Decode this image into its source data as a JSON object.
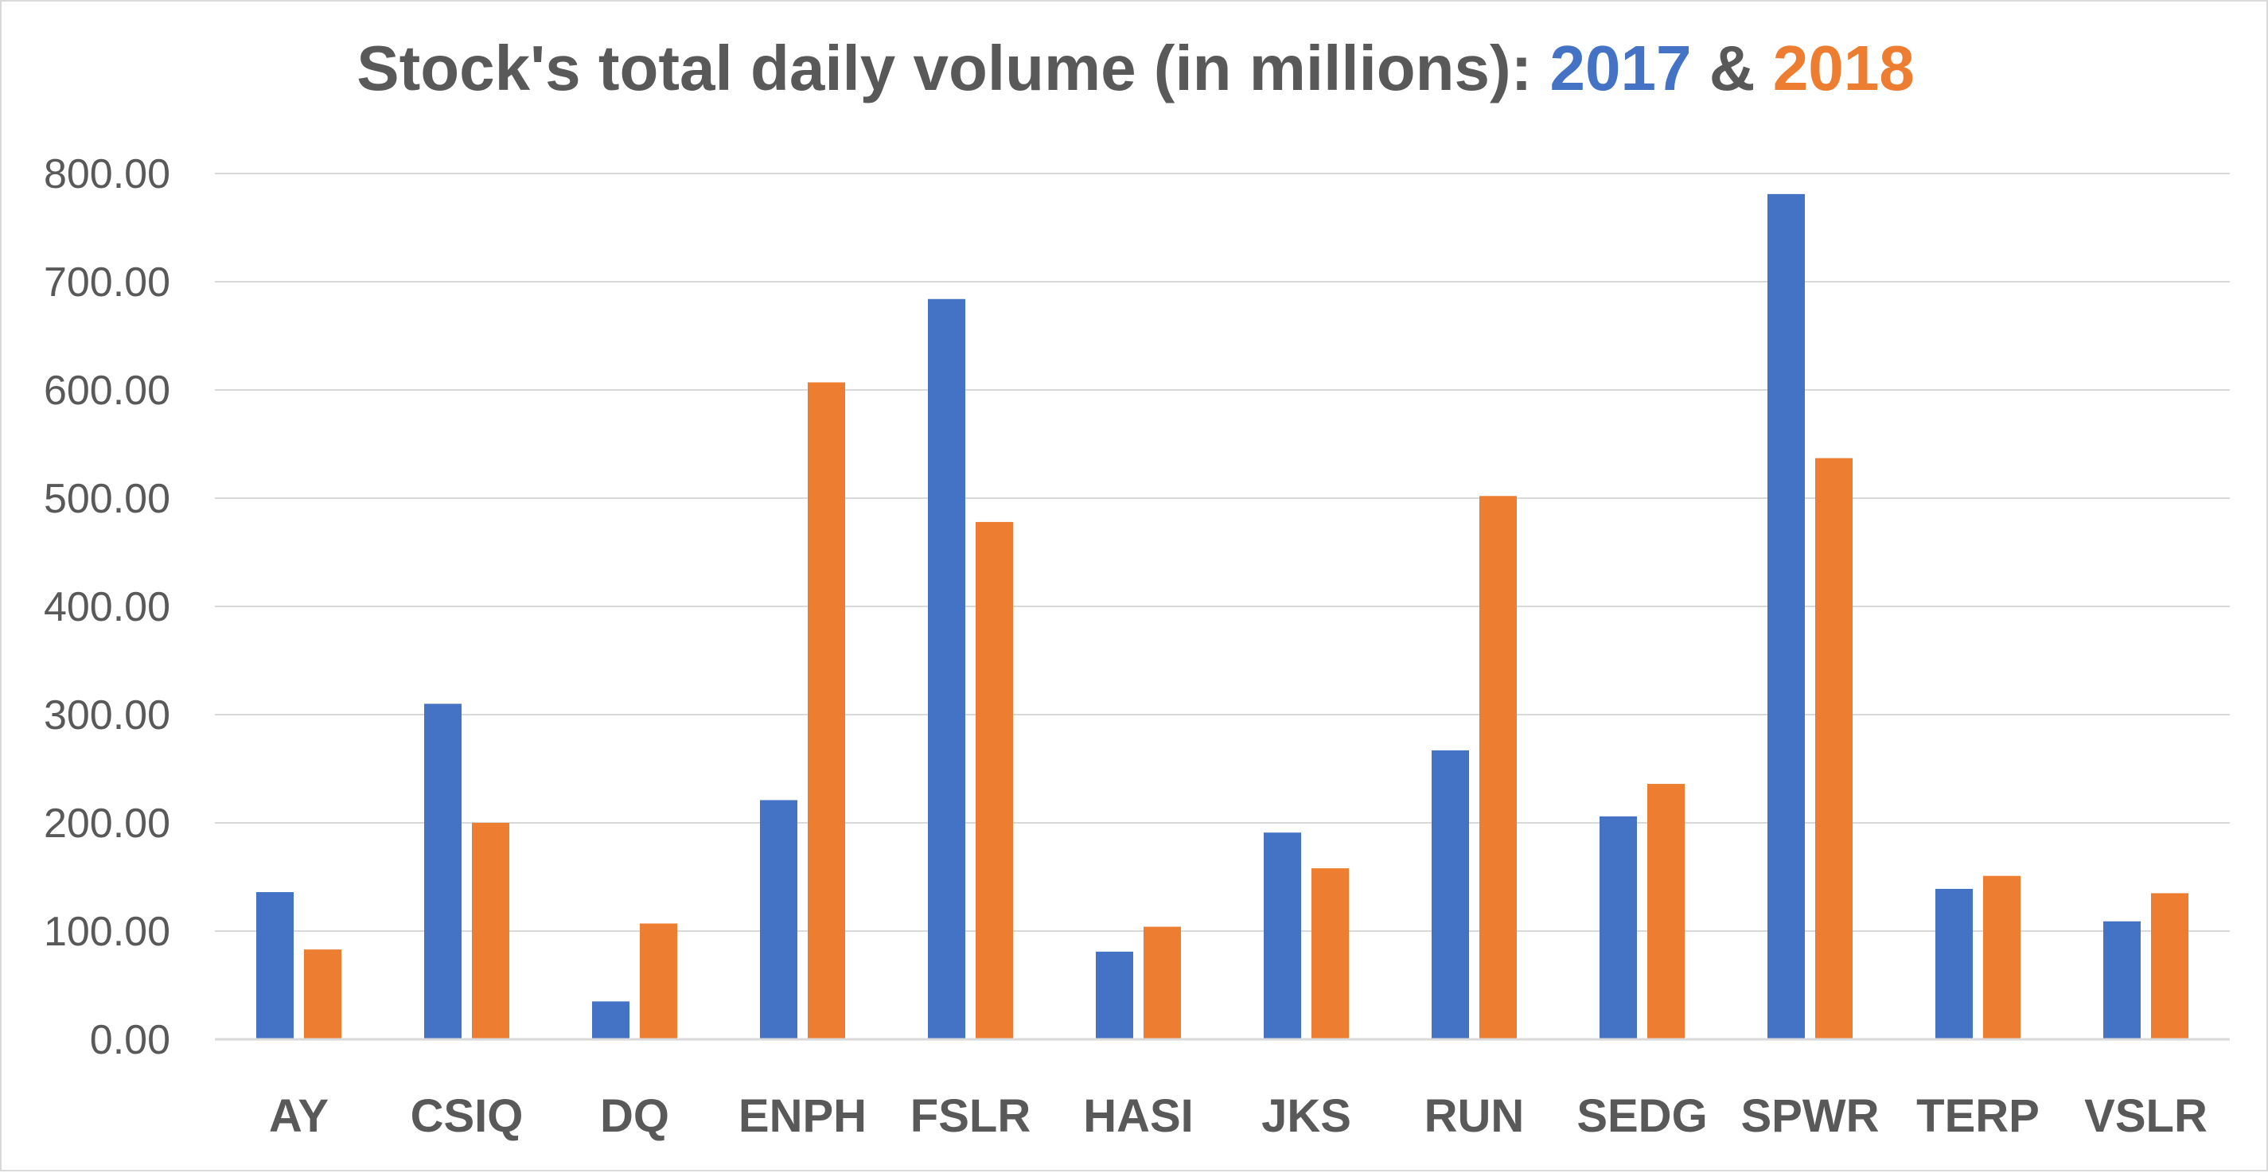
{
  "chart_data": {
    "type": "bar",
    "title": {
      "prefix": "Stock's total daily volume (in millions): ",
      "year_a": "2017",
      "joiner": " & ",
      "year_b": "2018"
    },
    "xlabel": "",
    "ylabel": "",
    "ylim": [
      0,
      800
    ],
    "yticks": [
      "0.00",
      "100.00",
      "200.00",
      "300.00",
      "400.00",
      "500.00",
      "600.00",
      "700.00",
      "800.00"
    ],
    "grid": true,
    "legend": "none",
    "categories": [
      "AY",
      "CSIQ",
      "DQ",
      "ENPH",
      "FSLR",
      "HASI",
      "JKS",
      "RUN",
      "SEDG",
      "SPWR",
      "TERP",
      "VSLR"
    ],
    "series": [
      {
        "color": "#4472c4",
        "values": [
          136,
          310,
          35,
          221,
          684,
          81,
          191,
          267,
          206,
          781,
          139,
          109
        ]
      },
      {
        "color": "#ed7d31",
        "values": [
          83,
          200,
          107,
          607,
          478,
          104,
          158,
          502,
          236,
          537,
          151,
          135
        ]
      }
    ]
  }
}
